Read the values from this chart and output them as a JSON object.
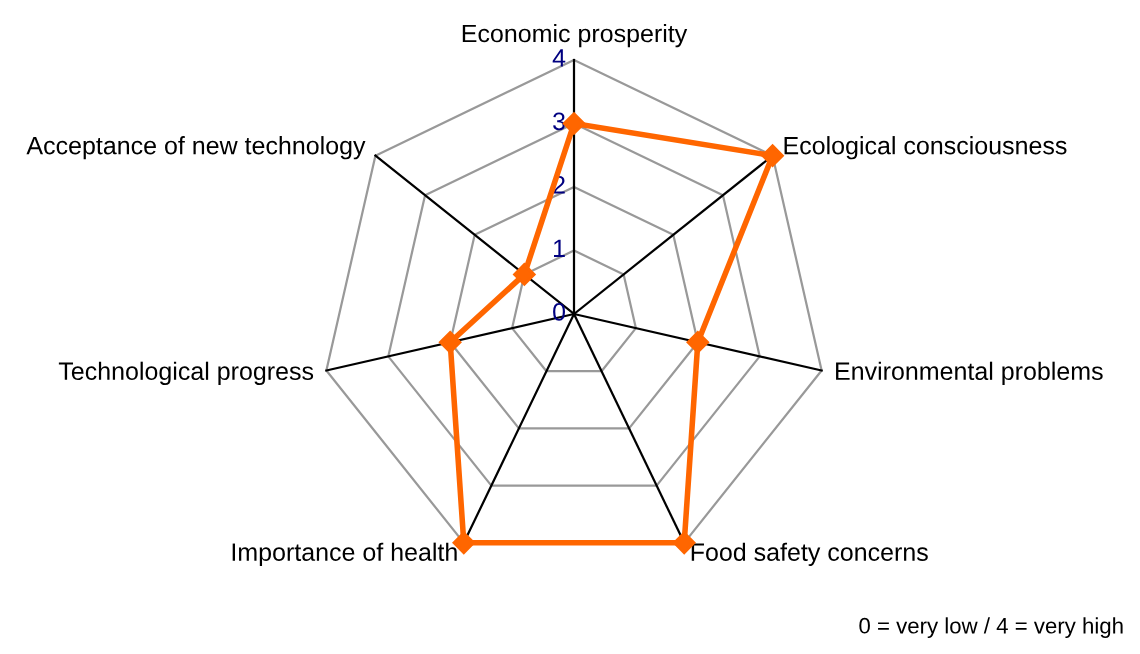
{
  "chart_data": {
    "type": "radar",
    "categories": [
      "Economic prosperity",
      "Ecological consciousness",
      "Environmental problems",
      "Food safety concerns",
      "Importance of health",
      "Technological progress",
      "Acceptance of new technology"
    ],
    "series": [
      {
        "color": "#ff6600",
        "values": [
          3,
          4,
          2,
          4,
          4,
          2,
          1
        ]
      }
    ],
    "ylim": [
      0,
      4
    ],
    "yticks": [
      0,
      1,
      2,
      3,
      4
    ],
    "grid": true,
    "marker": "diamond",
    "legend": false,
    "annotations": [
      "0 = very low / 4 = very high"
    ]
  }
}
